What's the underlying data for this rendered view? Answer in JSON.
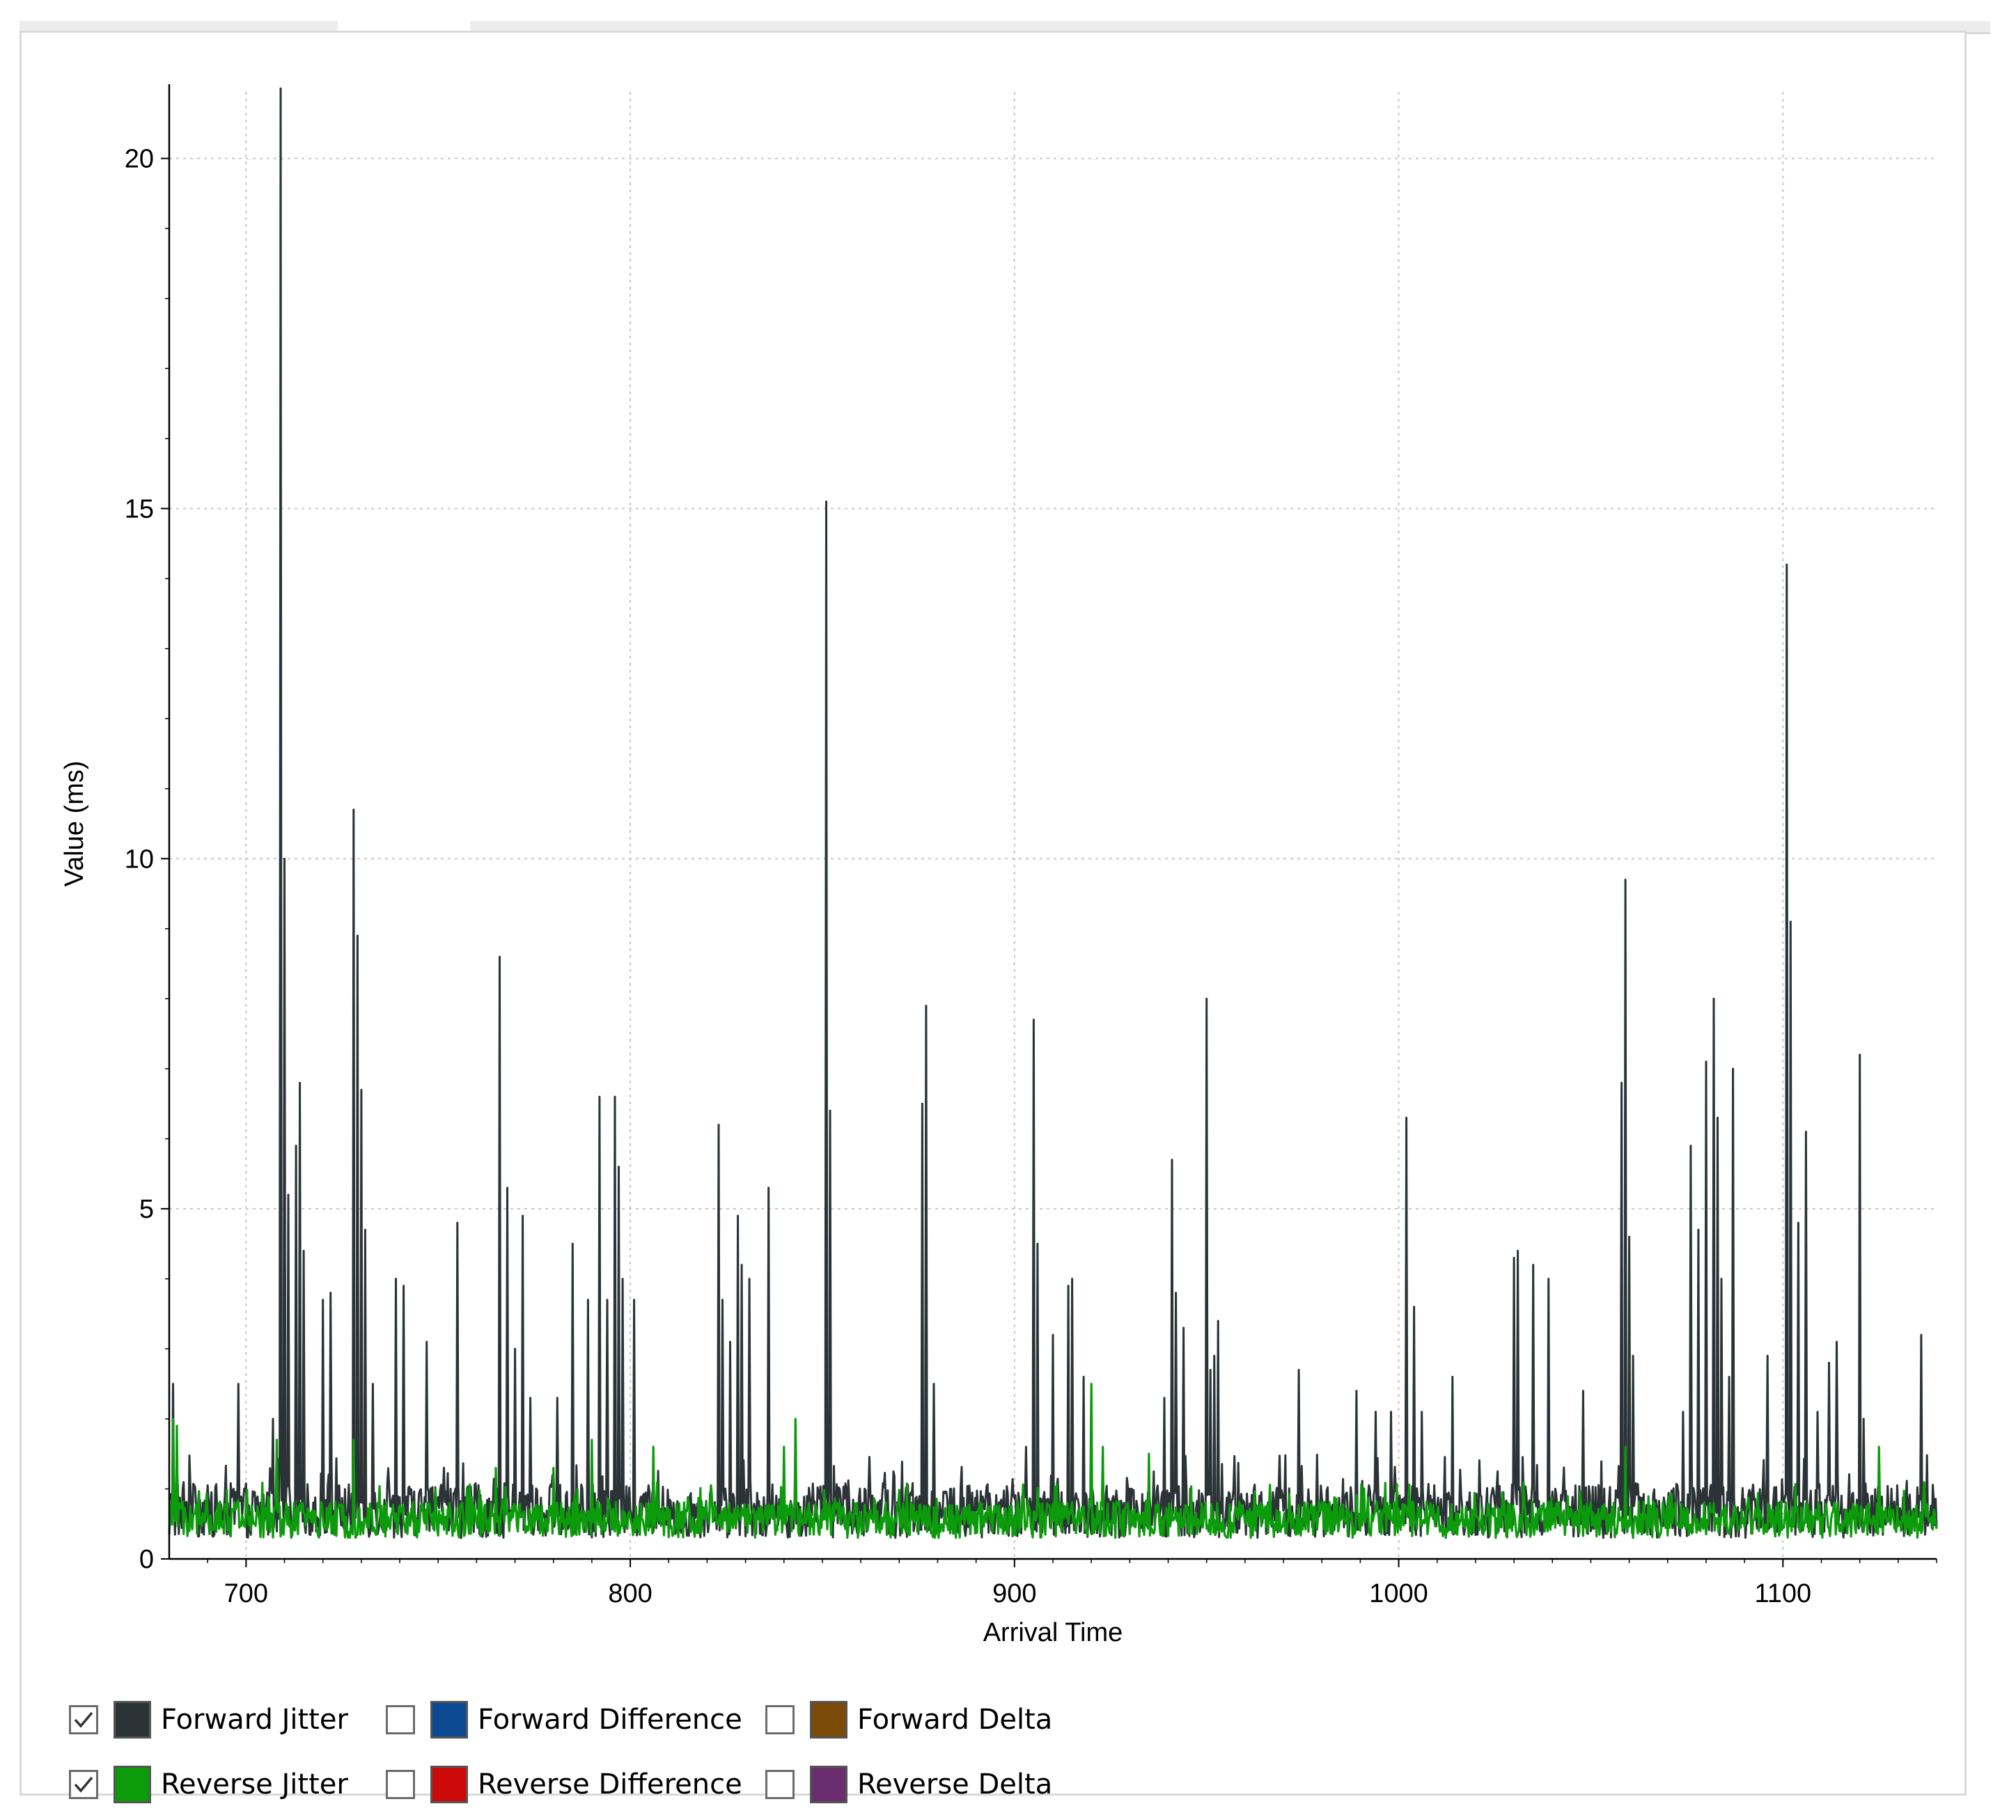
{
  "colors": {
    "forward_jitter": "#2b3336",
    "reverse_jitter": "#0b9b0b",
    "forward_difference": "#0b4a92",
    "reverse_difference": "#cc0a0a",
    "forward_delta": "#7a4a08",
    "reverse_delta": "#6a2e6e",
    "grid": "#c8c8c8"
  },
  "legend": [
    {
      "label": "Forward Jitter",
      "checked": true,
      "color": "#2b3336"
    },
    {
      "label": "Forward Difference",
      "checked": false,
      "color": "#0b4a92"
    },
    {
      "label": "Forward Delta",
      "checked": false,
      "color": "#7a4a08"
    },
    {
      "label": "Reverse Jitter",
      "checked": true,
      "color": "#0b9b0b"
    },
    {
      "label": "Reverse Difference",
      "checked": false,
      "color": "#cc0a0a"
    },
    {
      "label": "Reverse Delta",
      "checked": false,
      "color": "#6a2e6e"
    }
  ],
  "chart_data": {
    "type": "line",
    "title": "",
    "xlabel": "Arrival Time",
    "ylabel": "Value (ms)",
    "xlim": [
      680,
      1140
    ],
    "ylim": [
      0,
      21
    ],
    "x_ticks": [
      700,
      800,
      900,
      1000,
      1100
    ],
    "y_ticks": [
      0,
      5,
      10,
      15,
      20
    ],
    "x_tick_labels": [
      "700",
      "800",
      "900",
      "1000",
      "1100"
    ],
    "y_tick_labels": [
      "0",
      "5",
      "10",
      "15",
      "20"
    ],
    "grid": true,
    "legend_position": "bottom",
    "series": [
      {
        "name": "Forward Jitter",
        "peaks": [
          [
            681,
            2.5
          ],
          [
            698,
            2.5
          ],
          [
            707,
            2.0
          ],
          [
            709,
            21.0
          ],
          [
            710,
            10.0
          ],
          [
            711,
            5.2
          ],
          [
            713,
            5.9
          ],
          [
            714,
            6.8
          ],
          [
            715,
            4.4
          ],
          [
            720,
            3.7
          ],
          [
            722,
            3.8
          ],
          [
            728,
            10.7
          ],
          [
            729,
            8.9
          ],
          [
            730,
            6.7
          ],
          [
            731,
            4.7
          ],
          [
            733,
            2.5
          ],
          [
            739,
            4.0
          ],
          [
            741,
            3.9
          ],
          [
            747,
            3.1
          ],
          [
            755,
            4.8
          ],
          [
            766,
            8.6
          ],
          [
            768,
            5.3
          ],
          [
            770,
            3.0
          ],
          [
            772,
            4.9
          ],
          [
            774,
            2.3
          ],
          [
            781,
            2.3
          ],
          [
            785,
            4.5
          ],
          [
            789,
            3.7
          ],
          [
            792,
            6.6
          ],
          [
            794,
            3.7
          ],
          [
            796,
            6.6
          ],
          [
            797,
            5.6
          ],
          [
            798,
            4.0
          ],
          [
            801,
            3.7
          ],
          [
            823,
            6.2
          ],
          [
            824,
            3.7
          ],
          [
            826,
            3.1
          ],
          [
            828,
            4.9
          ],
          [
            829,
            4.2
          ],
          [
            831,
            4.0
          ],
          [
            836,
            5.3
          ],
          [
            851,
            15.1
          ],
          [
            852,
            6.4
          ],
          [
            876,
            6.5
          ],
          [
            877,
            7.9
          ],
          [
            879,
            2.5
          ],
          [
            903,
            1.6
          ],
          [
            905,
            7.7
          ],
          [
            906,
            4.5
          ],
          [
            910,
            3.2
          ],
          [
            914,
            3.9
          ],
          [
            915,
            4.0
          ],
          [
            918,
            2.6
          ],
          [
            939,
            2.3
          ],
          [
            941,
            5.7
          ],
          [
            942,
            3.8
          ],
          [
            944,
            3.3
          ],
          [
            950,
            8.0
          ],
          [
            951,
            2.7
          ],
          [
            952,
            2.9
          ],
          [
            953,
            3.4
          ],
          [
            974,
            2.7
          ],
          [
            989,
            2.4
          ],
          [
            994,
            2.1
          ],
          [
            998,
            2.1
          ],
          [
            1002,
            6.3
          ],
          [
            1004,
            3.6
          ],
          [
            1006,
            2.1
          ],
          [
            1014,
            2.6
          ],
          [
            1030,
            4.3
          ],
          [
            1031,
            4.4
          ],
          [
            1035,
            4.2
          ],
          [
            1039,
            4.0
          ],
          [
            1048,
            2.4
          ],
          [
            1058,
            6.8
          ],
          [
            1059,
            9.7
          ],
          [
            1060,
            4.6
          ],
          [
            1061,
            2.9
          ],
          [
            1074,
            2.1
          ],
          [
            1076,
            5.9
          ],
          [
            1078,
            4.7
          ],
          [
            1080,
            7.1
          ],
          [
            1082,
            8.0
          ],
          [
            1083,
            6.3
          ],
          [
            1084,
            4.0
          ],
          [
            1086,
            2.6
          ],
          [
            1087,
            7.0
          ],
          [
            1096,
            2.9
          ],
          [
            1101,
            14.2
          ],
          [
            1102,
            9.1
          ],
          [
            1104,
            4.8
          ],
          [
            1106,
            6.1
          ],
          [
            1109,
            2.1
          ],
          [
            1112,
            2.8
          ],
          [
            1114,
            3.1
          ],
          [
            1120,
            7.2
          ],
          [
            1121,
            2.0
          ],
          [
            1136,
            3.2
          ]
        ],
        "baseline_range": [
          0.3,
          1.5
        ]
      },
      {
        "name": "Reverse Jitter",
        "peaks": [
          [
            681,
            2.0
          ],
          [
            682,
            1.9
          ],
          [
            708,
            1.7
          ],
          [
            728,
            1.7
          ],
          [
            765,
            1.3
          ],
          [
            780,
            1.3
          ],
          [
            790,
            1.7
          ],
          [
            806,
            1.6
          ],
          [
            840,
            1.6
          ],
          [
            843,
            2.0
          ],
          [
            920,
            2.5
          ],
          [
            923,
            1.6
          ],
          [
            935,
            1.5
          ],
          [
            1059,
            1.6
          ],
          [
            1125,
            1.6
          ]
        ],
        "baseline_range": [
          0.3,
          1.1
        ]
      }
    ]
  }
}
